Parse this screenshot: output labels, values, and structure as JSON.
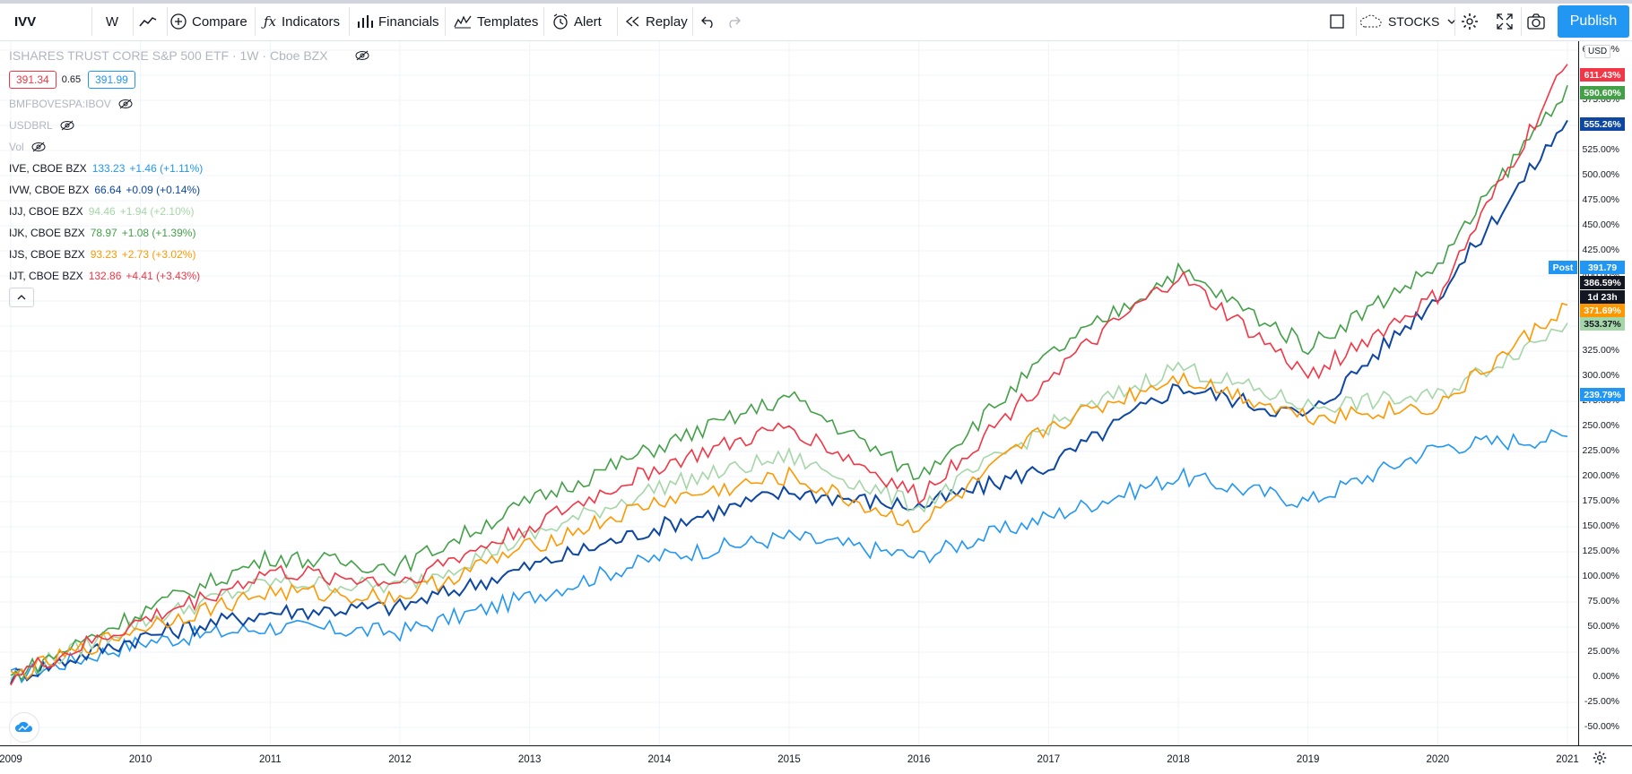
{
  "toolbar": {
    "symbol": "IVV",
    "interval": "W",
    "compare": "Compare",
    "indicators": "Indicators",
    "financials": "Financials",
    "templates": "Templates",
    "alert": "Alert",
    "replay": "Replay",
    "market": "STOCKS",
    "publish": "Publish"
  },
  "legend": {
    "main_title": "ISHARES TRUST CORE S&P 500 ETF · 1W · Cboe BZX",
    "bid": "391.34",
    "spread": "0.65",
    "ask": "391.99",
    "hidden": [
      "BMFBOVESPA:IBOV",
      "USDBRL",
      "Vol"
    ],
    "series": [
      {
        "name": "IVE, CBOE BZX",
        "value": "133.23",
        "change": "+1.46 (+1.11%)",
        "color": "#2196f3"
      },
      {
        "name": "IVW, CBOE BZX",
        "value": "66.64",
        "change": "+0.09 (+0.14%)",
        "color": "#0d47a1"
      },
      {
        "name": "IJJ, CBOE BZX",
        "value": "94.46",
        "change": "+1.94 (+2.10%)",
        "color": "#a5d6a7"
      },
      {
        "name": "IJK, CBOE BZX",
        "value": "78.97",
        "change": "+1.08 (+1.39%)",
        "color": "#43a047"
      },
      {
        "name": "IJS, CBOE BZX",
        "value": "93.23",
        "change": "+2.73 (+3.02%)",
        "color": "#ff9800"
      },
      {
        "name": "IJT, CBOE BZX",
        "value": "132.86",
        "change": "+4.41 (+3.43%)",
        "color": "#f23645"
      }
    ]
  },
  "price_axis": {
    "currency": "USD",
    "ticks": [
      "625.00%",
      "600.00%",
      "575.00%",
      "550.00%",
      "525.00%",
      "500.00%",
      "475.00%",
      "450.00%",
      "425.00%",
      "400.00%",
      "375.00%",
      "350.00%",
      "325.00%",
      "300.00%",
      "275.00%",
      "250.00%",
      "225.00%",
      "200.00%",
      "175.00%",
      "150.00%",
      "125.00%",
      "100.00%",
      "75.00%",
      "50.00%",
      "25.00%",
      "0.00%",
      "-25.00%",
      "-50.00%"
    ],
    "tags": [
      {
        "label": "611.43%",
        "color": "#f23645"
      },
      {
        "label": "590.60%",
        "color": "#43a047"
      },
      {
        "label": "555.26%",
        "color": "#0d47a1"
      },
      {
        "label": "391.79",
        "color": "#2196f3",
        "prefix": "Post"
      },
      {
        "label": "386.59%",
        "color": "#131722"
      },
      {
        "label": "1d 23h",
        "color": "#131722"
      },
      {
        "label": "371.69%",
        "color": "#ff9800"
      },
      {
        "label": "353.37%",
        "color": "#a5d6a7"
      },
      {
        "label": "239.79%",
        "color": "#2196f3"
      }
    ]
  },
  "time_axis": {
    "years": [
      "2009",
      "2010",
      "2011",
      "2012",
      "2013",
      "2014",
      "2015",
      "2016",
      "2017",
      "2018",
      "2019",
      "2020",
      "2021"
    ]
  },
  "chart_data": {
    "type": "line",
    "x": [
      "2009",
      "2010",
      "2011",
      "2012",
      "2013",
      "2014",
      "2015",
      "2016",
      "2017",
      "2018",
      "2019",
      "2020",
      "2021"
    ],
    "ylim": [
      -50,
      625
    ],
    "series": [
      {
        "name": "IVE, CBOE BZX",
        "color": "#2196f3",
        "values": [
          0,
          35,
          50,
          45,
          80,
          120,
          140,
          120,
          160,
          200,
          175,
          230,
          240
        ]
      },
      {
        "name": "IVW, CBOE BZX",
        "color": "#0d47a1",
        "values": [
          0,
          40,
          65,
          70,
          110,
          150,
          185,
          170,
          210,
          290,
          260,
          380,
          555
        ]
      },
      {
        "name": "IJJ, CBOE BZX",
        "color": "#a5d6a7",
        "values": [
          0,
          55,
          95,
          90,
          140,
          190,
          220,
          170,
          250,
          310,
          270,
          280,
          353
        ]
      },
      {
        "name": "IJK, CBOE BZX",
        "color": "#43a047",
        "values": [
          0,
          65,
          120,
          110,
          175,
          230,
          280,
          200,
          320,
          405,
          330,
          410,
          590
        ]
      },
      {
        "name": "IJS, CBOE BZX",
        "color": "#ff9800",
        "values": [
          0,
          50,
          85,
          80,
          130,
          175,
          200,
          150,
          250,
          300,
          260,
          270,
          371
        ]
      },
      {
        "name": "IJT, CBOE BZX",
        "color": "#f23645",
        "values": [
          0,
          55,
          105,
          95,
          150,
          210,
          250,
          180,
          300,
          400,
          300,
          380,
          611
        ]
      }
    ]
  }
}
